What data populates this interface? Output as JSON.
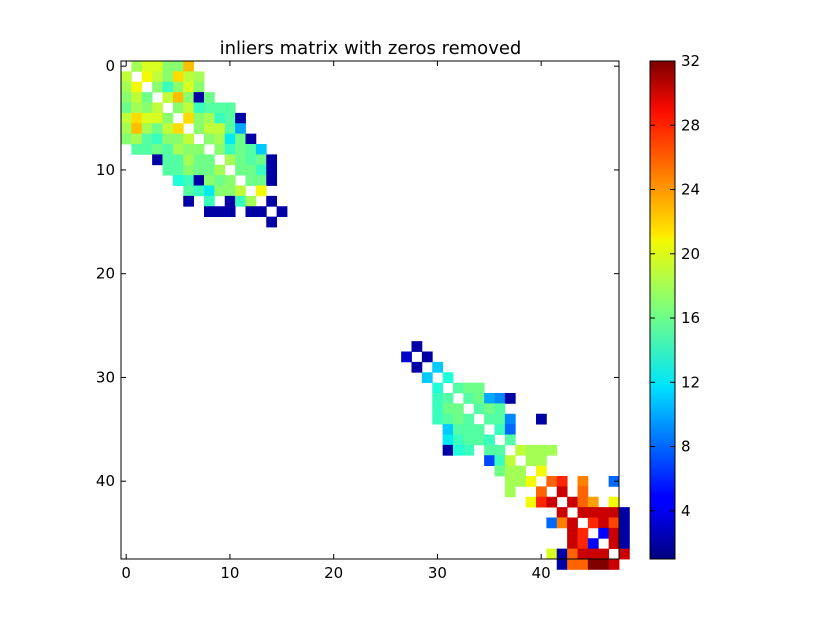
{
  "chart_data": {
    "type": "heatmap",
    "title": "inliers matrix with zeros removed",
    "xlabel": "",
    "ylabel": "",
    "size": 48,
    "xlim": [
      -0.5,
      47.5
    ],
    "ylim": [
      47.5,
      -0.5
    ],
    "x_ticks": [
      0,
      10,
      20,
      30,
      40
    ],
    "y_ticks": [
      0,
      10,
      20,
      30,
      40
    ],
    "grid": false,
    "colormap": "jet",
    "colorbar": {
      "vmin": 1,
      "vmax": 32,
      "ticks": [
        4,
        8,
        12,
        16,
        20,
        24,
        28,
        32
      ]
    },
    "blocks": [
      {
        "offset": 0,
        "values": [
          [
            0,
            18,
            20,
            20,
            17,
            17,
            23,
            0,
            0,
            0,
            0,
            0,
            0,
            0,
            0,
            0
          ],
          [
            19,
            0,
            21,
            19,
            17,
            22,
            19,
            18,
            0,
            0,
            0,
            0,
            0,
            0,
            0,
            0
          ],
          [
            18,
            21,
            0,
            17,
            14,
            17,
            20,
            17,
            0,
            0,
            0,
            0,
            0,
            0,
            0,
            0
          ],
          [
            17,
            19,
            16,
            0,
            19,
            23,
            17,
            2,
            16,
            0,
            0,
            0,
            0,
            0,
            0,
            0
          ],
          [
            16,
            18,
            17,
            19,
            0,
            17,
            19,
            14,
            15,
            15,
            15,
            0,
            0,
            0,
            0,
            0
          ],
          [
            19,
            22,
            20,
            20,
            17,
            0,
            22,
            17,
            18,
            14,
            15,
            2,
            0,
            0,
            0,
            0
          ],
          [
            18,
            23,
            18,
            16,
            19,
            22,
            0,
            17,
            19,
            19,
            15,
            10,
            0,
            0,
            0,
            0
          ],
          [
            17,
            18,
            15,
            14,
            17,
            17,
            19,
            0,
            17,
            18,
            12,
            16,
            2,
            0,
            0,
            0
          ],
          [
            0,
            15,
            15,
            16,
            15,
            18,
            17,
            17,
            0,
            17,
            14,
            16,
            15,
            11,
            0,
            0
          ],
          [
            0,
            0,
            0,
            2,
            15,
            15,
            18,
            16,
            16,
            0,
            18,
            16,
            15,
            16,
            2,
            0
          ],
          [
            0,
            0,
            0,
            0,
            15,
            15,
            17,
            16,
            16,
            18,
            0,
            16,
            16,
            14,
            2,
            0
          ],
          [
            0,
            0,
            0,
            0,
            0,
            13,
            14,
            2,
            17,
            16,
            17,
            0,
            16,
            16,
            2,
            0
          ],
          [
            0,
            0,
            0,
            0,
            0,
            0,
            15,
            14,
            12,
            17,
            17,
            19,
            0,
            21,
            0,
            0
          ],
          [
            0,
            0,
            0,
            0,
            0,
            0,
            2,
            0,
            14,
            0,
            2,
            14,
            18,
            0,
            2,
            0
          ],
          [
            0,
            0,
            0,
            0,
            0,
            0,
            0,
            0,
            2,
            2,
            2,
            0,
            2,
            2,
            0,
            2
          ],
          [
            0,
            0,
            0,
            0,
            0,
            0,
            0,
            0,
            0,
            0,
            0,
            0,
            0,
            0,
            2,
            0
          ]
        ]
      },
      {
        "offset": 27,
        "values": [
          [
            0,
            2,
            0,
            0,
            0,
            0,
            0,
            0,
            0,
            0,
            0,
            0,
            0,
            0,
            0,
            0,
            0,
            0,
            0,
            0,
            0,
            0
          ],
          [
            3,
            0,
            2,
            0,
            0,
            0,
            0,
            0,
            0,
            0,
            0,
            0,
            0,
            0,
            0,
            0,
            0,
            0,
            0,
            0,
            0,
            0
          ],
          [
            0,
            2,
            0,
            11,
            0,
            0,
            0,
            0,
            0,
            0,
            0,
            0,
            0,
            0,
            0,
            0,
            0,
            0,
            0,
            0,
            0,
            0
          ],
          [
            0,
            0,
            11,
            0,
            13,
            0,
            0,
            0,
            0,
            0,
            0,
            0,
            0,
            0,
            0,
            0,
            0,
            0,
            0,
            0,
            0,
            0
          ],
          [
            0,
            0,
            0,
            13,
            0,
            15,
            16,
            16,
            0,
            0,
            0,
            0,
            0,
            0,
            0,
            0,
            0,
            0,
            0,
            0,
            0,
            0
          ],
          [
            0,
            0,
            0,
            14,
            15,
            0,
            15,
            16,
            10,
            9,
            2,
            0,
            0,
            0,
            0,
            0,
            0,
            0,
            0,
            0,
            0,
            0
          ],
          [
            0,
            0,
            0,
            14,
            16,
            16,
            0,
            15,
            16,
            15,
            0,
            0,
            0,
            0,
            0,
            0,
            0,
            0,
            0,
            0,
            0,
            0
          ],
          [
            0,
            0,
            0,
            14,
            15,
            16,
            15,
            0,
            15,
            15,
            9,
            0,
            0,
            2,
            0,
            0,
            0,
            0,
            0,
            0,
            0,
            0
          ],
          [
            0,
            0,
            0,
            0,
            11,
            15,
            15,
            15,
            0,
            14,
            8,
            0,
            0,
            0,
            0,
            0,
            0,
            0,
            0,
            0,
            0,
            0
          ],
          [
            0,
            0,
            0,
            0,
            12,
            14,
            15,
            15,
            14,
            0,
            15,
            0,
            0,
            0,
            0,
            0,
            0,
            0,
            0,
            0,
            0,
            0
          ],
          [
            0,
            0,
            0,
            0,
            2,
            13,
            14,
            0,
            15,
            15,
            0,
            19,
            18,
            18,
            18,
            0,
            0,
            0,
            0,
            0,
            0,
            0
          ],
          [
            0,
            0,
            0,
            0,
            0,
            0,
            0,
            0,
            7,
            14,
            19,
            0,
            18,
            18,
            0,
            0,
            0,
            0,
            0,
            0,
            0,
            0
          ],
          [
            0,
            0,
            0,
            0,
            0,
            0,
            0,
            0,
            0,
            16,
            18,
            18,
            0,
            21,
            0,
            0,
            0,
            0,
            0,
            0,
            0,
            0
          ],
          [
            0,
            0,
            0,
            0,
            0,
            0,
            0,
            0,
            0,
            0,
            18,
            18,
            21,
            0,
            26,
            28,
            0,
            25,
            0,
            0,
            8,
            0
          ],
          [
            0,
            0,
            0,
            0,
            0,
            0,
            0,
            0,
            0,
            0,
            18,
            0,
            0,
            26,
            0,
            30,
            0,
            26,
            0,
            0,
            0,
            0
          ],
          [
            0,
            0,
            0,
            0,
            0,
            0,
            0,
            0,
            0,
            0,
            0,
            0,
            21,
            28,
            30,
            0,
            30,
            26,
            24,
            0,
            21,
            0
          ],
          [
            0,
            0,
            0,
            0,
            0,
            0,
            0,
            0,
            0,
            0,
            0,
            0,
            0,
            0,
            0,
            30,
            0,
            30,
            30,
            30,
            30,
            2
          ],
          [
            0,
            0,
            0,
            0,
            0,
            0,
            0,
            0,
            0,
            0,
            0,
            0,
            0,
            0,
            8,
            25,
            30,
            0,
            28,
            30,
            27,
            2
          ],
          [
            0,
            0,
            0,
            0,
            0,
            0,
            0,
            0,
            0,
            0,
            0,
            0,
            0,
            0,
            0,
            0,
            30,
            28,
            0,
            5,
            30,
            2
          ],
          [
            0,
            0,
            0,
            0,
            0,
            0,
            0,
            0,
            0,
            0,
            0,
            0,
            0,
            0,
            0,
            0,
            30,
            28,
            5,
            0,
            30,
            2
          ],
          [
            0,
            0,
            0,
            0,
            0,
            0,
            0,
            0,
            0,
            0,
            0,
            0,
            0,
            0,
            20,
            2,
            26,
            30,
            30,
            30,
            0,
            30
          ],
          [
            0,
            0,
            0,
            0,
            0,
            0,
            0,
            0,
            0,
            0,
            0,
            0,
            0,
            0,
            0,
            2,
            26,
            26,
            32,
            32,
            30,
            0
          ]
        ]
      }
    ]
  }
}
